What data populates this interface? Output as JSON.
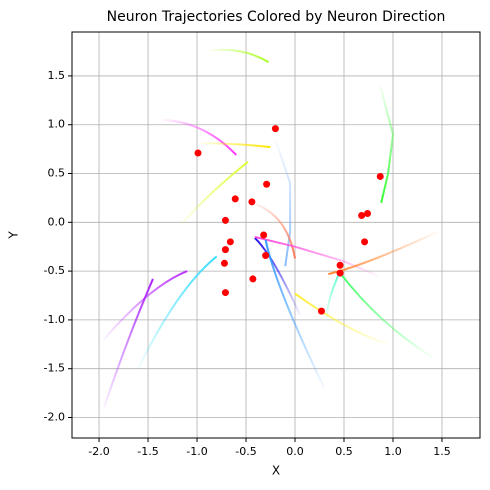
{
  "chart_data": {
    "type": "line",
    "title": "Neuron Trajectories Colored by Neuron Direction",
    "x_label": "X",
    "y_label": "Y",
    "xlim": [
      -2.276,
      1.888
    ],
    "ylim": [
      -2.21,
      1.95
    ],
    "grid": true,
    "xticks": [
      {
        "value": -2,
        "label": "-2.0"
      },
      -1.5,
      {
        "value": -1,
        "label": "-1.0"
      },
      -0.5,
      {
        "value": 0,
        "label": "0.0"
      },
      0.5,
      {
        "value": 1,
        "label": "1.0"
      },
      1.5
    ],
    "yticks": [
      {
        "value": -2,
        "label": "-2.0"
      },
      -1.5,
      {
        "value": -1,
        "label": "-1.0"
      },
      -0.5,
      {
        "value": 0,
        "label": "0.0"
      },
      0.5,
      {
        "value": 1,
        "label": "1.0"
      },
      1.5
    ],
    "series": [
      {
        "color": "#aaff22",
        "x": [
          -0.87,
          -0.55,
          -0.27
        ],
        "y": [
          1.76,
          1.75,
          1.64
        ]
      },
      {
        "color": "#ff33ff",
        "x": [
          -1.35,
          -0.95,
          -0.6
        ],
        "y": [
          1.05,
          0.95,
          0.69
        ]
      },
      {
        "color": "#ffe600",
        "x": [
          -0.97,
          -0.6,
          -0.25
        ],
        "y": [
          0.81,
          0.8,
          0.77
        ]
      },
      {
        "color": "#ddff33",
        "x": [
          -1.17,
          -0.85,
          -0.48
        ],
        "y": [
          -0.03,
          0.3,
          0.62
        ]
      },
      {
        "color": "#33ff33",
        "x": [
          0.87,
          1.0,
          0.95,
          0.88
        ],
        "y": [
          1.4,
          0.9,
          0.5,
          0.2
        ]
      },
      {
        "color": "#88bbff",
        "x": [
          -0.2,
          -0.05,
          -0.05,
          -0.1
        ],
        "y": [
          0.85,
          0.4,
          -0.1,
          -0.45
        ]
      },
      {
        "color": "#ff7755",
        "x": [
          -0.44,
          -0.15,
          0.0
        ],
        "y": [
          0.2,
          0.0,
          -0.37
        ]
      },
      {
        "color": "#2211ee",
        "x": [
          0.05,
          -0.2,
          -0.41
        ],
        "y": [
          -0.95,
          -0.45,
          -0.16
        ]
      },
      {
        "color": "#ff44dd",
        "x": [
          0.85,
          0.5,
          0.0,
          -0.41
        ],
        "y": [
          -0.55,
          -0.4,
          -0.25,
          -0.15
        ]
      },
      {
        "color": "#ff8833",
        "x": [
          1.45,
          0.8,
          0.34
        ],
        "y": [
          -0.1,
          -0.38,
          -0.53
        ]
      },
      {
        "color": "#44ff66",
        "x": [
          1.4,
          0.9,
          0.46
        ],
        "y": [
          -1.38,
          -1.0,
          -0.52
        ]
      },
      {
        "color": "#55ffcc",
        "x": [
          0.33,
          0.35,
          0.46
        ],
        "y": [
          -1.0,
          -0.8,
          -0.5
        ]
      },
      {
        "color": "#ffee33",
        "x": [
          0.95,
          0.5,
          0.0
        ],
        "y": [
          -1.25,
          -1.05,
          -0.73
        ]
      },
      {
        "color": "#3399ff",
        "x": [
          0.3,
          -0.1,
          -0.3
        ],
        "y": [
          -1.7,
          -0.8,
          -0.18
        ]
      },
      {
        "color": "#33ddff",
        "x": [
          -1.6,
          -1.2,
          -0.8
        ],
        "y": [
          -1.5,
          -0.8,
          -0.35
        ]
      },
      {
        "color": "#bb33ff",
        "x": [
          -1.95,
          -1.5,
          -1.1
        ],
        "y": [
          -1.2,
          -0.75,
          -0.5
        ]
      },
      {
        "color": "#aa22ff",
        "x": [
          -1.95,
          -1.7,
          -1.45
        ],
        "y": [
          -1.9,
          -1.2,
          -0.58
        ]
      }
    ],
    "scatter": {
      "color": "#ff0000",
      "x": [
        -0.2,
        -0.99,
        0.87,
        -0.29,
        -0.61,
        -0.44,
        -0.71,
        0.68,
        0.74,
        -0.32,
        -0.66,
        0.71,
        -0.71,
        0.46,
        -0.3,
        -0.72,
        0.46,
        -0.43,
        -0.71,
        0.27
      ],
      "y": [
        0.96,
        0.71,
        0.47,
        0.39,
        0.24,
        0.21,
        0.02,
        0.07,
        0.09,
        -0.13,
        -0.2,
        -0.2,
        -0.28,
        -0.44,
        -0.34,
        -0.42,
        -0.52,
        -0.58,
        -0.72,
        -0.91
      ]
    }
  }
}
